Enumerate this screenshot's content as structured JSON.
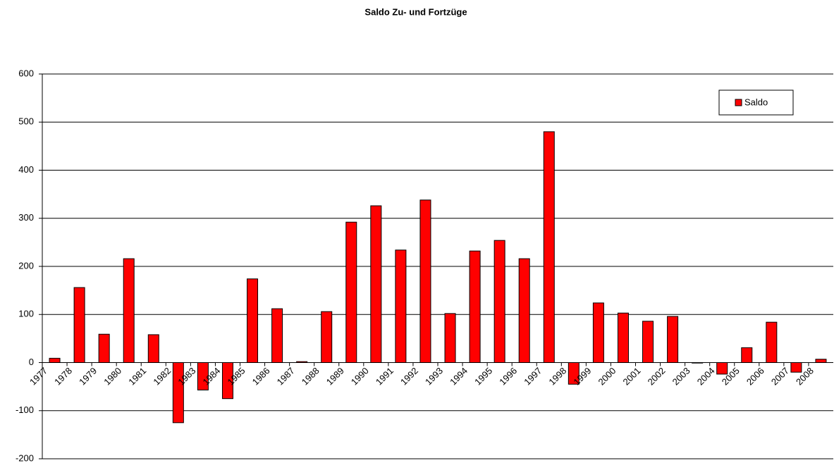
{
  "chart_data": {
    "type": "bar",
    "title": "Saldo Zu- und Fortzüge",
    "categories": [
      "1977",
      "1978",
      "1979",
      "1980",
      "1981",
      "1982",
      "1983",
      "1984",
      "1985",
      "1986",
      "1987",
      "1988",
      "1989",
      "1990",
      "1991",
      "1992",
      "1993",
      "1994",
      "1995",
      "1996",
      "1997",
      "1998",
      "1999",
      "2000",
      "2001",
      "2002",
      "2003",
      "2004",
      "2005",
      "2006",
      "2007",
      "2008"
    ],
    "series": [
      {
        "name": "Saldo",
        "color": "#ff0000",
        "values": [
          9,
          156,
          59,
          216,
          58,
          -125,
          -57,
          -75,
          174,
          112,
          2,
          106,
          292,
          326,
          234,
          338,
          102,
          232,
          254,
          216,
          480,
          -45,
          124,
          103,
          86,
          96,
          -1,
          -24,
          31,
          84,
          -20,
          7
        ]
      }
    ],
    "ylim": [
      -200,
      600
    ],
    "yticks": [
      -200,
      -100,
      0,
      100,
      200,
      300,
      400,
      500,
      600
    ],
    "grid": true,
    "legend": "upper right"
  }
}
